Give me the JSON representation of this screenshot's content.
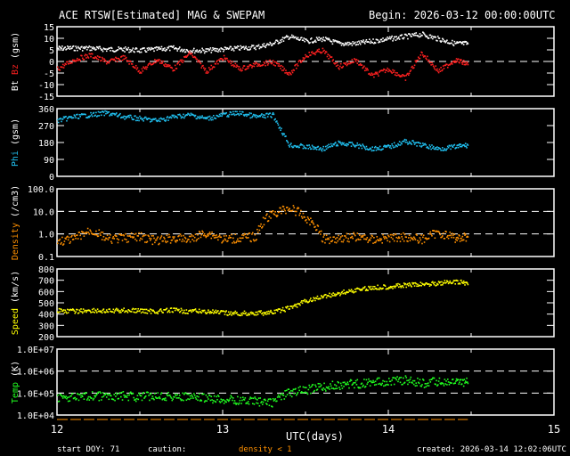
{
  "chart_data": {
    "type": "scatter",
    "title": "ACE RTSW[Estimated] MAG & SWEPAM",
    "begin_label": "Begin: 2026-03-12 00:00:00UTC",
    "xlabel": "UTC(days)",
    "xlim": [
      12,
      15
    ],
    "xticks": [
      "12",
      "13",
      "14",
      "15"
    ],
    "x": [
      12.0,
      12.1,
      12.2,
      12.3,
      12.4,
      12.5,
      12.6,
      12.7,
      12.8,
      12.9,
      13.0,
      13.1,
      13.2,
      13.3,
      13.4,
      13.5,
      13.6,
      13.7,
      13.8,
      13.9,
      14.0,
      14.1,
      14.2,
      14.3,
      14.4,
      14.48
    ],
    "panels": [
      {
        "ylabel_parts": [
          "Bt",
          "Bz",
          "(gsm)"
        ],
        "ylabel_colors": [
          "#ffffff",
          "#ff2020",
          "#ffffff"
        ],
        "scale": "linear",
        "ylim": [
          -15,
          15
        ],
        "yticks": [
          "15",
          "10",
          "5",
          "0",
          "-5",
          "-10",
          "-15"
        ],
        "dashed": [
          0
        ],
        "series": [
          {
            "name": "Bt",
            "color": "#ffffff",
            "values": [
              6,
              6,
              6,
              5.5,
              5.5,
              5,
              5.5,
              6,
              5,
              5,
              5.5,
              6,
              6.5,
              8,
              11,
              9,
              10,
              8,
              8,
              9,
              10,
              11,
              12,
              10,
              8,
              8
            ]
          },
          {
            "name": "Bz",
            "color": "#ff2020",
            "values": [
              -3,
              1,
              3,
              0,
              2,
              -4,
              1,
              -3,
              4,
              -4,
              2,
              -3,
              -1,
              0,
              -5,
              3,
              5,
              -2,
              1,
              -6,
              -3,
              -7,
              4,
              -4,
              1,
              -1
            ]
          }
        ]
      },
      {
        "ylabel_parts": [
          "Phi",
          "(gsm)"
        ],
        "ylabel_colors": [
          "#20c0f0",
          "#ffffff"
        ],
        "scale": "linear",
        "ylim": [
          0,
          360
        ],
        "yticks": [
          "360",
          "270",
          "180",
          "90",
          "0"
        ],
        "dashed": [],
        "series": [
          {
            "name": "Phi",
            "color": "#20c0f0",
            "values": [
              300,
              320,
              330,
              340,
              320,
              310,
              300,
              320,
              330,
              310,
              330,
              340,
              320,
              330,
              170,
              160,
              150,
              180,
              170,
              150,
              160,
              190,
              170,
              150,
              160,
              170
            ]
          }
        ]
      },
      {
        "ylabel_parts": [
          "Density",
          "(/cm3)"
        ],
        "ylabel_colors": [
          "#ff9000",
          "#ffffff"
        ],
        "scale": "log",
        "ylim": [
          0.1,
          100
        ],
        "yticks": [
          "100.0",
          "10.0",
          "1.0",
          "0.1"
        ],
        "dashed": [
          10,
          1
        ],
        "series": [
          {
            "name": "Density",
            "color": "#ff9000",
            "values": [
              0.5,
              0.6,
              1.5,
              0.6,
              0.7,
              0.8,
              0.5,
              0.7,
              0.6,
              1.2,
              0.6,
              0.7,
              0.8,
              8,
              15,
              5,
              0.6,
              0.7,
              0.8,
              0.6,
              0.7,
              0.8,
              0.6,
              1.2,
              0.7,
              0.8
            ]
          }
        ]
      },
      {
        "ylabel_parts": [
          "Speed",
          "(km/s)"
        ],
        "ylabel_colors": [
          "#ffff00",
          "#ffffff"
        ],
        "scale": "linear",
        "ylim": [
          200,
          800
        ],
        "yticks": [
          "800",
          "700",
          "600",
          "500",
          "400",
          "300",
          "200"
        ],
        "dashed": [],
        "series": [
          {
            "name": "Speed",
            "color": "#ffff00",
            "values": [
              440,
              430,
              440,
              430,
              440,
              435,
              430,
              440,
              430,
              430,
              415,
              410,
              415,
              420,
              460,
              520,
              560,
              590,
              620,
              640,
              650,
              660,
              670,
              680,
              690,
              680
            ]
          }
        ]
      },
      {
        "ylabel_parts": [
          "Temp",
          "(K)"
        ],
        "ylabel_colors": [
          "#20ff20",
          "#ffffff"
        ],
        "scale": "log",
        "ylim": [
          10000,
          10000000
        ],
        "yticks": [
          "1.0E+07",
          "1.0E+06",
          "1.0E+05",
          "1.0E+04"
        ],
        "dashed": [
          1000000,
          100000
        ],
        "series": [
          {
            "name": "Temp",
            "color": "#20ff20",
            "values": [
              70000,
              65000,
              80000,
              75000,
              80000,
              70000,
              85000,
              75000,
              70000,
              60000,
              55000,
              50000,
              45000,
              40000,
              110000,
              150000,
              200000,
              250000,
              280000,
              320000,
              380000,
              420000,
              300000,
              350000,
              330000,
              320000
            ]
          }
        ]
      }
    ]
  },
  "footer": {
    "start_doy": "start DOY:  71",
    "caution": "caution:",
    "density_note": "density < 1",
    "created": "created: 2026-03-14 12:02:06UTC"
  }
}
